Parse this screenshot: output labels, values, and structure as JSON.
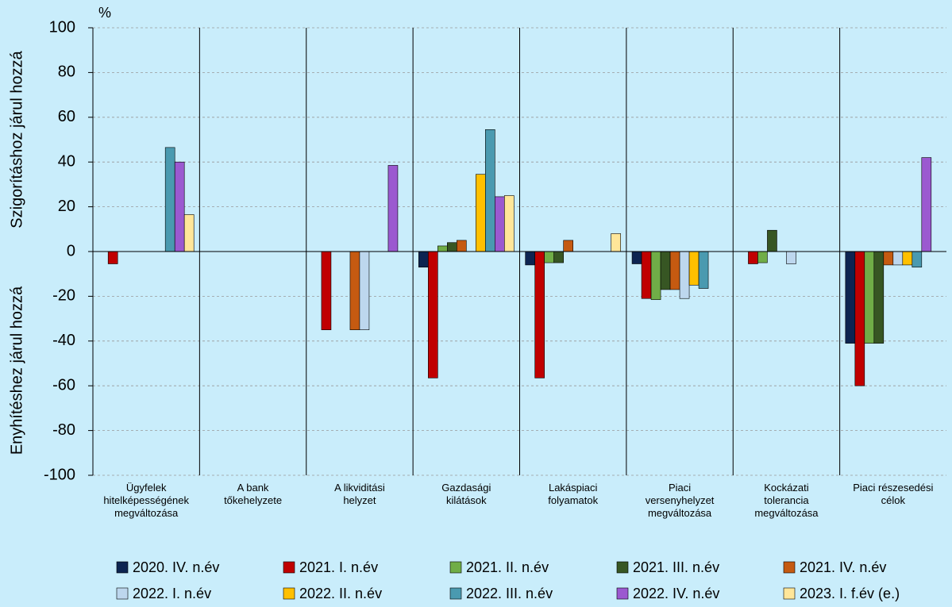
{
  "chart_data": {
    "type": "bar",
    "unit": "%",
    "y_label_upper": "Szigorításhoz járul hozzá",
    "y_label_lower": "Enyhítéshez járul hozzá",
    "categories": [
      "Ügyfelek\nhitelképességének\nmegváltozása",
      "A bank\ntőkehelyzete",
      "A likviditási\nhelyzet",
      "Gazdasági\nkilátások",
      "Lakáspiaci\nfolyamatok",
      "Piaci\nversenyhelyzet\nmegváltozása",
      "Kockázati\ntolerancia\nmegváltozása",
      "Piaci részesedési\ncélok"
    ],
    "series": [
      {
        "name": "2020. IV. n.év",
        "color": "#0d2451",
        "values": [
          0,
          0,
          0,
          -7,
          -6,
          -5.5,
          0,
          -41
        ]
      },
      {
        "name": "2021. I. n.év",
        "color": "#c00000",
        "values": [
          -5.5,
          0,
          -35,
          -56.5,
          -56.5,
          -21,
          -5.5,
          -60
        ]
      },
      {
        "name": "2021. II. n.év",
        "color": "#70ad47",
        "values": [
          0,
          0,
          0,
          2.5,
          -5,
          -21.5,
          -5,
          -41
        ]
      },
      {
        "name": "2021. III. n.év",
        "color": "#375623",
        "values": [
          0,
          0,
          0,
          4,
          -5,
          -17,
          9.5,
          -41
        ]
      },
      {
        "name": "2021. IV. n.év",
        "color": "#c55a11",
        "values": [
          0,
          0,
          -35,
          5,
          5,
          -17,
          0,
          -6
        ]
      },
      {
        "name": "2022. I. n.év",
        "color": "#bdd7ee",
        "values": [
          0,
          0,
          -35,
          0,
          0,
          -21,
          -5.5,
          -6
        ]
      },
      {
        "name": "2022. II. n.év",
        "color": "#ffc000",
        "values": [
          0,
          0,
          0,
          34.5,
          0,
          -15,
          0,
          -6
        ]
      },
      {
        "name": "2022. III. n.év",
        "color": "#4a9ab0",
        "values": [
          46.5,
          0,
          0,
          54.5,
          0,
          -16.5,
          0,
          -7
        ]
      },
      {
        "name": "2022. IV. n.év",
        "color": "#9b59d0",
        "values": [
          40,
          0,
          38.5,
          24.5,
          0,
          0,
          0,
          42
        ]
      },
      {
        "name": "2023. I. f.év (e.)",
        "color": "#ffe699",
        "values": [
          16.5,
          0,
          0,
          25,
          8,
          0,
          0,
          0
        ]
      }
    ],
    "ylim": [
      -100,
      100
    ],
    "yticks": [
      -100,
      -80,
      -60,
      -40,
      -20,
      0,
      20,
      40,
      60,
      80,
      100
    ],
    "grid": true
  }
}
